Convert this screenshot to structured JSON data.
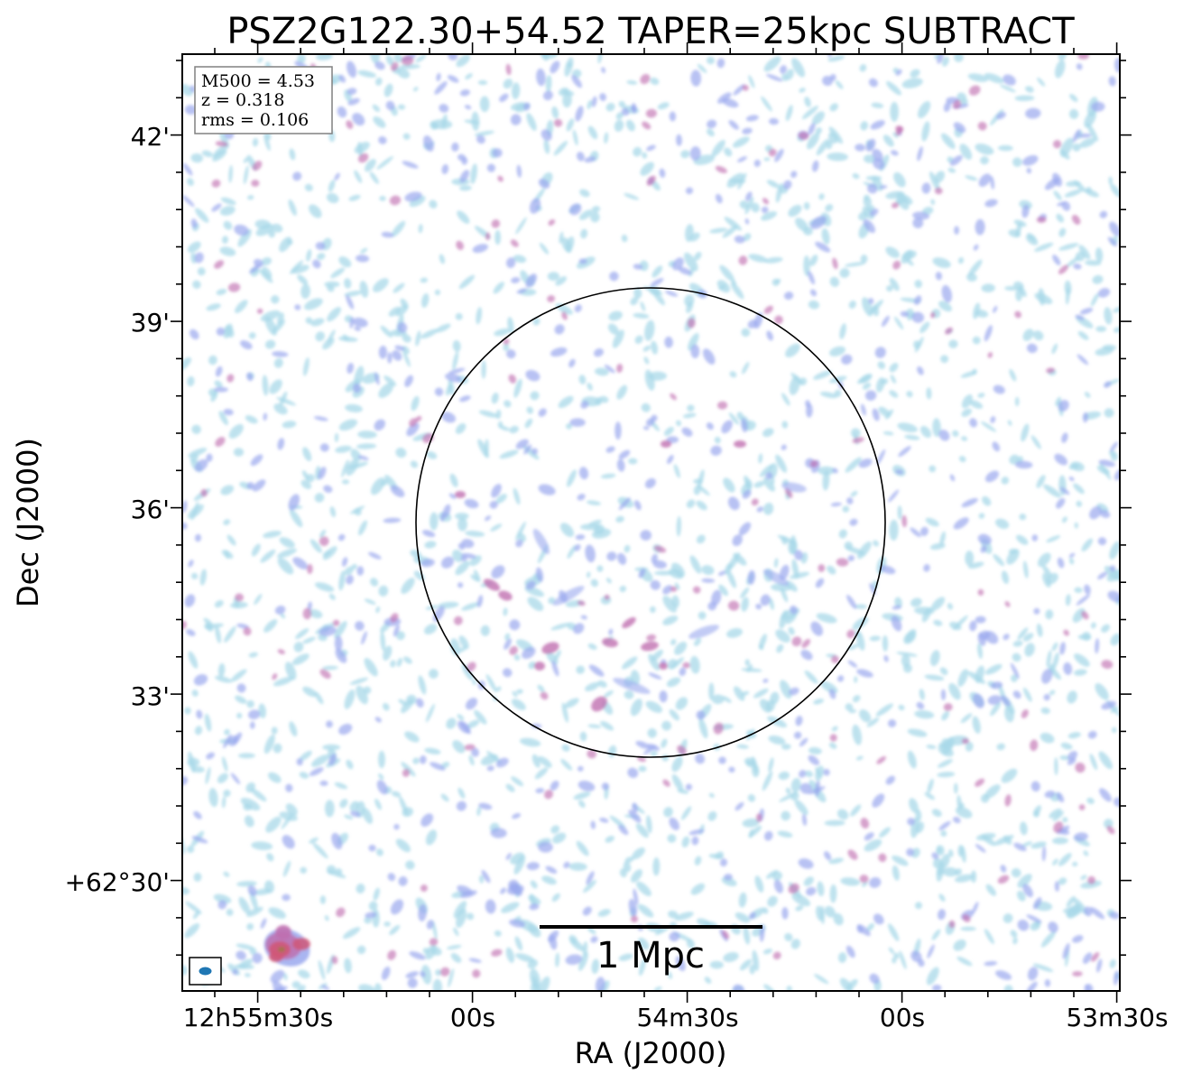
{
  "figure": {
    "title": "PSZ2G122.30+54.52 TAPER=25kpc SUBTRACT",
    "xlabel": "RA (J2000)",
    "ylabel": "Dec (J2000)",
    "x_ticks": [
      "12h55m30s",
      "00s",
      "54m30s",
      "00s",
      "53m30s"
    ],
    "y_ticks": [
      "42'",
      "39'",
      "36'",
      "33'",
      "+62°30'"
    ],
    "info_box": {
      "m500": "M500 = 4.53",
      "z": "z = 0.318",
      "rms": "rms = 0.106"
    },
    "scale_bar_label": "1 Mpc",
    "colors": {
      "faint_emission": "#a8d8e8",
      "mid_emission": "#9aa8ee",
      "bright_emission": "#c070b0",
      "peak_emission": "#d05878",
      "beam": "#1f77b4"
    }
  }
}
